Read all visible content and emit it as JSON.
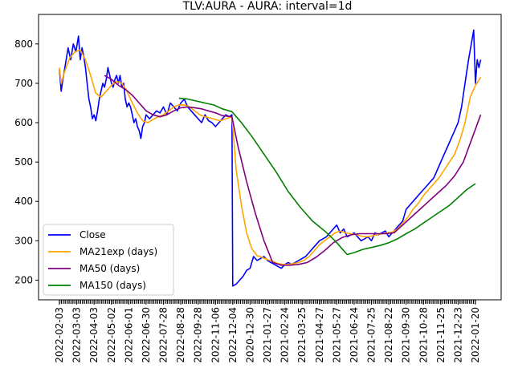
{
  "chart_data": {
    "type": "line",
    "title": "TLV:AURA - AURA: interval=1d",
    "xlabel": "",
    "ylabel": "",
    "ylim": [
      150,
      875
    ],
    "yticks": [
      200,
      300,
      400,
      500,
      600,
      700,
      800
    ],
    "x_tick_labels": [
      "2022-02-03",
      "2022-03-03",
      "2022-04-03",
      "2022-05-02",
      "2022-06-01",
      "2022-06-30",
      "2022-07-28",
      "2022-08-28",
      "2022-09-28",
      "2022-11-06",
      "2022-12-04",
      "2020-12-30",
      "2021-01-27",
      "2021-02-24",
      "2021-03-25",
      "2021-04-27",
      "2021-05-27",
      "2021-06-24",
      "2021-07-25",
      "2021-08-22",
      "2021-09-30",
      "2021-10-28",
      "2021-11-25",
      "2021-12-23",
      "2022-01-20"
    ],
    "grid": false,
    "legend_position": "lower-left",
    "x_index_range": [
      0,
      24
    ],
    "series": [
      {
        "name": "Close",
        "color": "#0000ff",
        "points": [
          [
            0,
            735
          ],
          [
            0.1,
            680
          ],
          [
            0.2,
            710
          ],
          [
            0.35,
            750
          ],
          [
            0.5,
            790
          ],
          [
            0.65,
            760
          ],
          [
            0.8,
            800
          ],
          [
            0.95,
            780
          ],
          [
            1.1,
            820
          ],
          [
            1.2,
            760
          ],
          [
            1.3,
            790
          ],
          [
            1.4,
            770
          ],
          [
            1.5,
            740
          ],
          [
            1.6,
            700
          ],
          [
            1.7,
            660
          ],
          [
            1.8,
            640
          ],
          [
            1.9,
            610
          ],
          [
            2.0,
            620
          ],
          [
            2.1,
            605
          ],
          [
            2.2,
            630
          ],
          [
            2.3,
            660
          ],
          [
            2.4,
            680
          ],
          [
            2.5,
            700
          ],
          [
            2.6,
            690
          ],
          [
            2.7,
            710
          ],
          [
            2.8,
            740
          ],
          [
            2.9,
            720
          ],
          [
            3.0,
            700
          ],
          [
            3.1,
            690
          ],
          [
            3.2,
            710
          ],
          [
            3.3,
            720
          ],
          [
            3.4,
            700
          ],
          [
            3.5,
            720
          ],
          [
            3.6,
            690
          ],
          [
            3.7,
            700
          ],
          [
            3.8,
            660
          ],
          [
            3.9,
            640
          ],
          [
            4.0,
            650
          ],
          [
            4.1,
            640
          ],
          [
            4.2,
            620
          ],
          [
            4.3,
            600
          ],
          [
            4.4,
            610
          ],
          [
            4.5,
            590
          ],
          [
            4.6,
            580
          ],
          [
            4.7,
            560
          ],
          [
            4.8,
            590
          ],
          [
            4.9,
            600
          ],
          [
            5.0,
            620
          ],
          [
            5.2,
            610
          ],
          [
            5.4,
            620
          ],
          [
            5.6,
            630
          ],
          [
            5.8,
            625
          ],
          [
            6.0,
            640
          ],
          [
            6.2,
            620
          ],
          [
            6.4,
            650
          ],
          [
            6.6,
            640
          ],
          [
            6.8,
            630
          ],
          [
            7.0,
            650
          ],
          [
            7.2,
            660
          ],
          [
            7.4,
            640
          ],
          [
            7.6,
            630
          ],
          [
            7.8,
            620
          ],
          [
            8.0,
            610
          ],
          [
            8.2,
            600
          ],
          [
            8.4,
            620
          ],
          [
            8.6,
            605
          ],
          [
            8.8,
            600
          ],
          [
            9.0,
            590
          ],
          [
            9.2,
            600
          ],
          [
            9.4,
            610
          ],
          [
            9.6,
            620
          ],
          [
            9.8,
            615
          ],
          [
            9.95,
            620
          ],
          [
            10.0,
            185
          ],
          [
            10.2,
            190
          ],
          [
            10.4,
            200
          ],
          [
            10.6,
            210
          ],
          [
            10.8,
            225
          ],
          [
            11.0,
            230
          ],
          [
            11.2,
            260
          ],
          [
            11.4,
            250
          ],
          [
            11.6,
            255
          ],
          [
            11.8,
            260
          ],
          [
            12.0,
            250
          ],
          [
            12.2,
            245
          ],
          [
            12.4,
            240
          ],
          [
            12.6,
            235
          ],
          [
            12.8,
            230
          ],
          [
            13.0,
            240
          ],
          [
            13.2,
            245
          ],
          [
            13.4,
            240
          ],
          [
            13.6,
            245
          ],
          [
            13.8,
            250
          ],
          [
            14.0,
            255
          ],
          [
            14.2,
            260
          ],
          [
            14.4,
            270
          ],
          [
            14.6,
            280
          ],
          [
            14.8,
            290
          ],
          [
            15.0,
            300
          ],
          [
            15.2,
            305
          ],
          [
            15.4,
            310
          ],
          [
            15.6,
            320
          ],
          [
            15.8,
            330
          ],
          [
            16.0,
            340
          ],
          [
            16.2,
            320
          ],
          [
            16.4,
            330
          ],
          [
            16.6,
            310
          ],
          [
            16.8,
            315
          ],
          [
            17.0,
            320
          ],
          [
            17.2,
            310
          ],
          [
            17.4,
            300
          ],
          [
            17.6,
            305
          ],
          [
            17.8,
            310
          ],
          [
            18.0,
            300
          ],
          [
            18.2,
            320
          ],
          [
            18.4,
            315
          ],
          [
            18.6,
            320
          ],
          [
            18.8,
            325
          ],
          [
            19.0,
            310
          ],
          [
            19.2,
            320
          ],
          [
            19.4,
            330
          ],
          [
            19.6,
            340
          ],
          [
            19.8,
            350
          ],
          [
            20.0,
            380
          ],
          [
            20.2,
            390
          ],
          [
            20.4,
            400
          ],
          [
            20.6,
            410
          ],
          [
            20.8,
            420
          ],
          [
            21.0,
            430
          ],
          [
            21.2,
            440
          ],
          [
            21.4,
            450
          ],
          [
            21.6,
            460
          ],
          [
            21.8,
            480
          ],
          [
            22.0,
            500
          ],
          [
            22.2,
            520
          ],
          [
            22.4,
            540
          ],
          [
            22.6,
            560
          ],
          [
            22.8,
            580
          ],
          [
            23.0,
            600
          ],
          [
            23.2,
            640
          ],
          [
            23.4,
            700
          ],
          [
            23.6,
            760
          ],
          [
            23.8,
            810
          ],
          [
            23.9,
            835
          ],
          [
            24.0,
            700
          ],
          [
            24.1,
            760
          ],
          [
            24.2,
            740
          ],
          [
            24.3,
            760
          ]
        ]
      },
      {
        "name": "MA21exp (days)",
        "color": "#ffa500",
        "points": [
          [
            0,
            740
          ],
          [
            0.1,
            700
          ],
          [
            0.3,
            730
          ],
          [
            0.6,
            765
          ],
          [
            0.9,
            780
          ],
          [
            1.2,
            785
          ],
          [
            1.5,
            760
          ],
          [
            1.8,
            720
          ],
          [
            2.1,
            675
          ],
          [
            2.4,
            665
          ],
          [
            2.7,
            680
          ],
          [
            3.0,
            695
          ],
          [
            3.3,
            705
          ],
          [
            3.6,
            700
          ],
          [
            3.9,
            680
          ],
          [
            4.2,
            650
          ],
          [
            4.5,
            625
          ],
          [
            4.8,
            605
          ],
          [
            5.1,
            600
          ],
          [
            5.4,
            608
          ],
          [
            5.7,
            615
          ],
          [
            6.0,
            620
          ],
          [
            6.3,
            630
          ],
          [
            6.6,
            640
          ],
          [
            6.9,
            645
          ],
          [
            7.2,
            645
          ],
          [
            7.5,
            640
          ],
          [
            7.8,
            630
          ],
          [
            8.1,
            620
          ],
          [
            8.4,
            615
          ],
          [
            8.7,
            612
          ],
          [
            9.0,
            608
          ],
          [
            9.3,
            605
          ],
          [
            9.6,
            610
          ],
          [
            9.95,
            615
          ],
          [
            10.2,
            480
          ],
          [
            10.5,
            390
          ],
          [
            10.8,
            320
          ],
          [
            11.1,
            280
          ],
          [
            11.4,
            262
          ],
          [
            11.7,
            258
          ],
          [
            12.0,
            252
          ],
          [
            12.3,
            248
          ],
          [
            12.6,
            242
          ],
          [
            12.9,
            240
          ],
          [
            13.2,
            240
          ],
          [
            13.5,
            242
          ],
          [
            13.8,
            245
          ],
          [
            14.1,
            250
          ],
          [
            14.4,
            260
          ],
          [
            14.7,
            275
          ],
          [
            15.0,
            290
          ],
          [
            15.3,
            300
          ],
          [
            15.6,
            310
          ],
          [
            15.9,
            320
          ],
          [
            16.2,
            325
          ],
          [
            16.5,
            320
          ],
          [
            16.8,
            318
          ],
          [
            17.1,
            316
          ],
          [
            17.4,
            312
          ],
          [
            17.7,
            310
          ],
          [
            18.0,
            312
          ],
          [
            18.3,
            315
          ],
          [
            18.6,
            318
          ],
          [
            18.9,
            320
          ],
          [
            19.2,
            322
          ],
          [
            19.5,
            330
          ],
          [
            19.8,
            345
          ],
          [
            20.1,
            360
          ],
          [
            20.4,
            380
          ],
          [
            20.7,
            395
          ],
          [
            21.0,
            415
          ],
          [
            21.3,
            430
          ],
          [
            21.6,
            445
          ],
          [
            21.9,
            460
          ],
          [
            22.2,
            480
          ],
          [
            22.5,
            500
          ],
          [
            22.8,
            520
          ],
          [
            23.1,
            555
          ],
          [
            23.4,
            600
          ],
          [
            23.7,
            665
          ],
          [
            24.0,
            695
          ],
          [
            24.3,
            715
          ]
        ]
      },
      {
        "name": "MA50 (days)",
        "color": "#800080",
        "points": [
          [
            2.6,
            720
          ],
          [
            3.0,
            710
          ],
          [
            3.4,
            695
          ],
          [
            3.8,
            685
          ],
          [
            4.2,
            670
          ],
          [
            4.6,
            650
          ],
          [
            5.0,
            630
          ],
          [
            5.4,
            620
          ],
          [
            5.8,
            615
          ],
          [
            6.2,
            620
          ],
          [
            6.6,
            630
          ],
          [
            7.0,
            638
          ],
          [
            7.4,
            640
          ],
          [
            7.8,
            638
          ],
          [
            8.2,
            635
          ],
          [
            8.6,
            630
          ],
          [
            9.0,
            625
          ],
          [
            9.4,
            618
          ],
          [
            9.95,
            615
          ],
          [
            10.3,
            540
          ],
          [
            10.8,
            450
          ],
          [
            11.3,
            370
          ],
          [
            11.8,
            300
          ],
          [
            12.3,
            245
          ],
          [
            12.8,
            238
          ],
          [
            13.3,
            238
          ],
          [
            13.8,
            240
          ],
          [
            14.3,
            245
          ],
          [
            14.8,
            258
          ],
          [
            15.3,
            275
          ],
          [
            15.8,
            295
          ],
          [
            16.3,
            308
          ],
          [
            16.8,
            315
          ],
          [
            17.3,
            318
          ],
          [
            17.8,
            318
          ],
          [
            18.3,
            318
          ],
          [
            18.8,
            318
          ],
          [
            19.3,
            320
          ],
          [
            19.8,
            340
          ],
          [
            20.3,
            360
          ],
          [
            20.8,
            380
          ],
          [
            21.3,
            400
          ],
          [
            21.8,
            420
          ],
          [
            22.3,
            440
          ],
          [
            22.8,
            465
          ],
          [
            23.3,
            500
          ],
          [
            23.8,
            560
          ],
          [
            24.3,
            620
          ]
        ]
      },
      {
        "name": "MA150 (days)",
        "color": "#008000",
        "points": [
          [
            6.9,
            662
          ],
          [
            7.4,
            660
          ],
          [
            7.9,
            655
          ],
          [
            8.4,
            650
          ],
          [
            8.9,
            645
          ],
          [
            9.4,
            635
          ],
          [
            9.95,
            628
          ],
          [
            10.5,
            600
          ],
          [
            11.1,
            565
          ],
          [
            11.8,
            520
          ],
          [
            12.5,
            475
          ],
          [
            13.2,
            425
          ],
          [
            13.9,
            385
          ],
          [
            14.6,
            350
          ],
          [
            15.3,
            325
          ],
          [
            15.9,
            300
          ],
          [
            16.3,
            280
          ],
          [
            16.6,
            265
          ],
          [
            17.0,
            270
          ],
          [
            17.5,
            278
          ],
          [
            18.0,
            283
          ],
          [
            18.5,
            288
          ],
          [
            19.0,
            295
          ],
          [
            19.5,
            305
          ],
          [
            20.0,
            318
          ],
          [
            20.5,
            330
          ],
          [
            21.0,
            345
          ],
          [
            21.5,
            360
          ],
          [
            22.0,
            375
          ],
          [
            22.5,
            390
          ],
          [
            23.0,
            410
          ],
          [
            23.5,
            430
          ],
          [
            24.0,
            445
          ]
        ]
      }
    ]
  }
}
